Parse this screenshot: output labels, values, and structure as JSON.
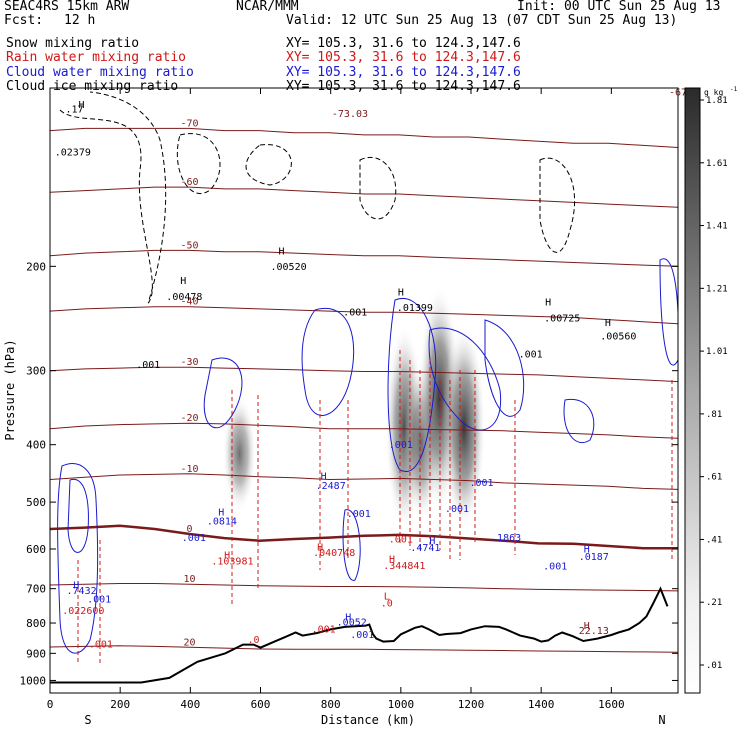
{
  "header": {
    "model": "SEAC4RS 15km ARW",
    "org": "NCAR/MMM",
    "init": "Init: 00 UTC Sun 25 Aug 13",
    "fcst_label": "Fcst:",
    "fcst_value": "12 h",
    "valid": "Valid: 12 UTC Sun 25 Aug 13 (07 CDT Sun 25 Aug 13)",
    "fields": [
      {
        "name": "Snow mixing ratio",
        "xy": "XY= 105.3, 31.6 to 124.3,147.6",
        "color": "#000000"
      },
      {
        "name": "Rain water mixing ratio",
        "xy": "XY= 105.3, 31.6 to 124.3,147.6",
        "color": "#d01818"
      },
      {
        "name": "Cloud water mixing ratio",
        "xy": "XY= 105.3, 31.6 to 124.3,147.6",
        "color": "#1a1ad0"
      },
      {
        "name": "Cloud ice mixing ratio",
        "xy": "XY= 105.3, 31.6 to 124.3,147.6",
        "color": "#000000"
      }
    ]
  },
  "chart_data": {
    "type": "heatmap",
    "title": "",
    "xlabel": "Distance (km)",
    "ylabel": "Pressure (hPa)",
    "xlim": [
      0,
      1790
    ],
    "ylim": [
      1050,
      100
    ],
    "yscale": "log",
    "x_ticks": [
      0,
      200,
      400,
      600,
      800,
      1000,
      1200,
      1400,
      1600
    ],
    "y_ticks": [
      200,
      300,
      400,
      500,
      600,
      700,
      800,
      900,
      1000
    ],
    "x_end_labels": {
      "left": "S",
      "right": "N"
    },
    "colorbar": {
      "unit": "g kg",
      "unit_exponent": "-1",
      "levels": [
        ".01",
        ".21",
        ".41",
        ".61",
        ".81",
        "1.01",
        "1.21",
        "1.41",
        "1.61",
        "1.81"
      ]
    },
    "temperature_isotherms": {
      "color": "#7a1a1a",
      "levels": [
        {
          "value": 0,
          "label": "0",
          "p": [
            555,
            552,
            548,
            555,
            566,
            575,
            581,
            577,
            574,
            570,
            568,
            571,
            576,
            581,
            587,
            588,
            593,
            598,
            598
          ]
        },
        {
          "value": -10,
          "label": "-10",
          "p": [
            458,
            454,
            450,
            449,
            448,
            450,
            453,
            455,
            458,
            457,
            456,
            458,
            460,
            464,
            466,
            468,
            470,
            474,
            476
          ]
        },
        {
          "value": -20,
          "label": "-20",
          "p": [
            376,
            372,
            370,
            369,
            368,
            369,
            371,
            373,
            376,
            376,
            376,
            377,
            378,
            379,
            381,
            383,
            385,
            388,
            390
          ]
        },
        {
          "value": -30,
          "label": "-30",
          "p": [
            300,
            298,
            297,
            296,
            296,
            297,
            298,
            299,
            300,
            301,
            301,
            302,
            303,
            304,
            305,
            307,
            309,
            311,
            313
          ]
        },
        {
          "value": -40,
          "label": "-40",
          "p": [
            238,
            236,
            235,
            234,
            234,
            235,
            236,
            237,
            238,
            239,
            239,
            240,
            241,
            242,
            243,
            244,
            246,
            248,
            250
          ]
        },
        {
          "value": -50,
          "label": "-50",
          "p": [
            192,
            190,
            189,
            188,
            188,
            189,
            189,
            190,
            191,
            192,
            192,
            193,
            194,
            195,
            196,
            197,
            198,
            199,
            200
          ]
        },
        {
          "value": -60,
          "label": "-60",
          "p": [
            150,
            149,
            148,
            147,
            147,
            148,
            148,
            149,
            150,
            151,
            151,
            152,
            153,
            154,
            155,
            156,
            157,
            158,
            159
          ]
        },
        {
          "value": -70,
          "label": "-70",
          "p": [
            118,
            117,
            117,
            117,
            117,
            118,
            118,
            119,
            119,
            120,
            120,
            121,
            121,
            122,
            123,
            124,
            124,
            125,
            126
          ]
        },
        {
          "value": 10,
          "label": "10",
          "p": [
            690,
            688,
            686,
            686,
            688,
            690,
            692,
            693,
            694,
            694,
            695,
            696,
            698,
            700,
            702,
            703,
            704,
            705,
            706
          ]
        },
        {
          "value": 20,
          "label": "20",
          "p": [
            878,
            876,
            874,
            876,
            879,
            882,
            885,
            886,
            886,
            886,
            887,
            888,
            889,
            890,
            892,
            893,
            894,
            895,
            896
          ]
        }
      ]
    },
    "terrain_p": [
      1008,
      1008,
      1008,
      1008,
      990,
      960,
      930,
      900,
      870,
      870,
      880,
      860,
      850,
      830,
      840,
      832,
      820,
      812,
      810,
      808,
      805,
      835,
      850,
      860,
      858,
      836,
      815,
      810,
      820,
      838,
      835,
      832,
      820,
      810,
      812,
      820,
      830,
      840,
      850,
      860,
      856,
      840,
      830,
      842,
      858,
      850,
      838,
      830,
      820,
      800,
      780,
      740,
      700,
      750
    ],
    "terrain_x": [
      0,
      50,
      100,
      260,
      340,
      380,
      420,
      500,
      550,
      580,
      600,
      640,
      660,
      700,
      720,
      760,
      800,
      840,
      870,
      900,
      910,
      920,
      930,
      950,
      980,
      1000,
      1040,
      1060,
      1080,
      1110,
      1130,
      1170,
      1200,
      1240,
      1280,
      1300,
      1320,
      1340,
      1380,
      1400,
      1420,
      1440,
      1460,
      1490,
      1520,
      1560,
      1600,
      1620,
      1650,
      1680,
      1700,
      1720,
      1740,
      1760
    ],
    "hydrometeor_shading": [
      {
        "x": 540,
        "p_top": 330,
        "p_bottom": 520,
        "max": 0.8
      },
      {
        "x": 1010,
        "p_top": 250,
        "p_bottom": 560,
        "max": 1.2
      },
      {
        "x": 1060,
        "p_top": 290,
        "p_bottom": 540,
        "max": 1.0
      },
      {
        "x": 1110,
        "p_top": 215,
        "p_bottom": 520,
        "max": 1.5
      },
      {
        "x": 1180,
        "p_top": 250,
        "p_bottom": 560,
        "max": 1.6
      }
    ],
    "labels": [
      {
        "text": "-67",
        "x": 1790,
        "p": 103,
        "color": "#7a1a1a"
      },
      {
        "text": "-73.03",
        "x": 855,
        "p": 112,
        "color": "#7a1a1a"
      },
      {
        "text": ".02379",
        "x": 65,
        "p": 130,
        "color": "#000000"
      },
      {
        "text": ".17",
        "x": 70,
        "p": 110,
        "color": "#000000"
      },
      {
        "text": "H",
        "x": 90,
        "p": 108,
        "color": "#000000"
      },
      {
        "text": "H",
        "x": 380,
        "p": 214,
        "color": "#000000"
      },
      {
        "text": ".00478",
        "x": 383,
        "p": 228,
        "color": "#000000"
      },
      {
        "text": "H",
        "x": 660,
        "p": 191,
        "color": "#000000"
      },
      {
        "text": ".00520",
        "x": 680,
        "p": 203,
        "color": "#000000"
      },
      {
        "text": ".001",
        "x": 870,
        "p": 242,
        "color": "#000000"
      },
      {
        "text": "H",
        "x": 1000,
        "p": 224,
        "color": "#000000"
      },
      {
        "text": ".01399",
        "x": 1040,
        "p": 238,
        "color": "#000000"
      },
      {
        "text": "H",
        "x": 1420,
        "p": 233,
        "color": "#000000"
      },
      {
        "text": ".00725",
        "x": 1460,
        "p": 248,
        "color": "#000000"
      },
      {
        "text": "H",
        "x": 1590,
        "p": 252,
        "color": "#000000"
      },
      {
        "text": ".00560",
        "x": 1620,
        "p": 266,
        "color": "#000000"
      },
      {
        "text": ".001",
        "x": 280,
        "p": 297,
        "color": "#000000"
      },
      {
        "text": ".001",
        "x": 1370,
        "p": 285,
        "color": "#000000"
      },
      {
        "text": "H",
        "x": 780,
        "p": 458,
        "color": "#1a1ad0"
      },
      {
        "text": ".2487",
        "x": 800,
        "p": 475,
        "color": "#1a1ad0"
      },
      {
        "text": "H",
        "x": 488,
        "p": 527,
        "color": "#1a1ad0"
      },
      {
        "text": ".0814",
        "x": 490,
        "p": 545,
        "color": "#1a1ad0"
      },
      {
        "text": ".001",
        "x": 410,
        "p": 582,
        "color": "#1a1ad0"
      },
      {
        "text": ".001",
        "x": 880,
        "p": 530,
        "color": "#1a1ad0"
      },
      {
        "text": ".001",
        "x": 1000,
        "p": 405,
        "color": "#1a1ad0"
      },
      {
        "text": ".001",
        "x": 1230,
        "p": 470,
        "color": "#1a1ad0"
      },
      {
        "text": ".001",
        "x": 1160,
        "p": 520,
        "color": "#1a1ad0"
      },
      {
        "text": ".1863",
        "x": 1300,
        "p": 582,
        "color": "#1a1ad0"
      },
      {
        "text": "H",
        "x": 1530,
        "p": 608,
        "color": "#1a1ad0"
      },
      {
        "text": ".0187",
        "x": 1550,
        "p": 626,
        "color": "#1a1ad0"
      },
      {
        "text": ".001",
        "x": 1440,
        "p": 650,
        "color": "#1a1ad0"
      },
      {
        "text": "H",
        "x": 1090,
        "p": 588,
        "color": "#1a1ad0"
      },
      {
        "text": ".4741",
        "x": 1070,
        "p": 605,
        "color": "#1a1ad0"
      },
      {
        "text": "H",
        "x": 75,
        "p": 700,
        "color": "#1a1ad0"
      },
      {
        "text": ".7432",
        "x": 90,
        "p": 715,
        "color": "#1a1ad0"
      },
      {
        "text": ".001",
        "x": 140,
        "p": 738,
        "color": "#1a1ad0"
      },
      {
        "text": "H",
        "x": 850,
        "p": 792,
        "color": "#1a1ad0"
      },
      {
        "text": ".0052",
        "x": 860,
        "p": 808,
        "color": "#1a1ad0"
      },
      {
        "text": ".001",
        "x": 890,
        "p": 848,
        "color": "#1a1ad0"
      },
      {
        "text": "H",
        "x": 505,
        "p": 623,
        "color": "#d01818"
      },
      {
        "text": ".103981",
        "x": 520,
        "p": 637,
        "color": "#d01818"
      },
      {
        "text": "H",
        "x": 770,
        "p": 603,
        "color": "#d01818"
      },
      {
        "text": ".040748",
        "x": 810,
        "p": 617,
        "color": "#d01818"
      },
      {
        "text": ".001",
        "x": 1000,
        "p": 585,
        "color": "#d01818"
      },
      {
        "text": "H",
        "x": 975,
        "p": 632,
        "color": "#d01818"
      },
      {
        "text": ".344841",
        "x": 1010,
        "p": 648,
        "color": "#d01818"
      },
      {
        "text": "L",
        "x": 960,
        "p": 730,
        "color": "#d01818"
      },
      {
        "text": ".0",
        "x": 960,
        "p": 750,
        "color": "#d01818"
      },
      {
        "text": ".022600",
        "x": 95,
        "p": 772,
        "color": "#d01818"
      },
      {
        "text": ".001",
        "x": 780,
        "p": 830,
        "color": "#d01818"
      },
      {
        "text": ".001",
        "x": 145,
        "p": 880,
        "color": "#d01818"
      },
      {
        "text": ".0",
        "x": 580,
        "p": 865,
        "color": "#d01818"
      },
      {
        "text": "H",
        "x": 1530,
        "p": 818,
        "color": "#7a1a1a"
      },
      {
        "text": "22.13",
        "x": 1550,
        "p": 835,
        "color": "#7a1a1a"
      }
    ]
  }
}
